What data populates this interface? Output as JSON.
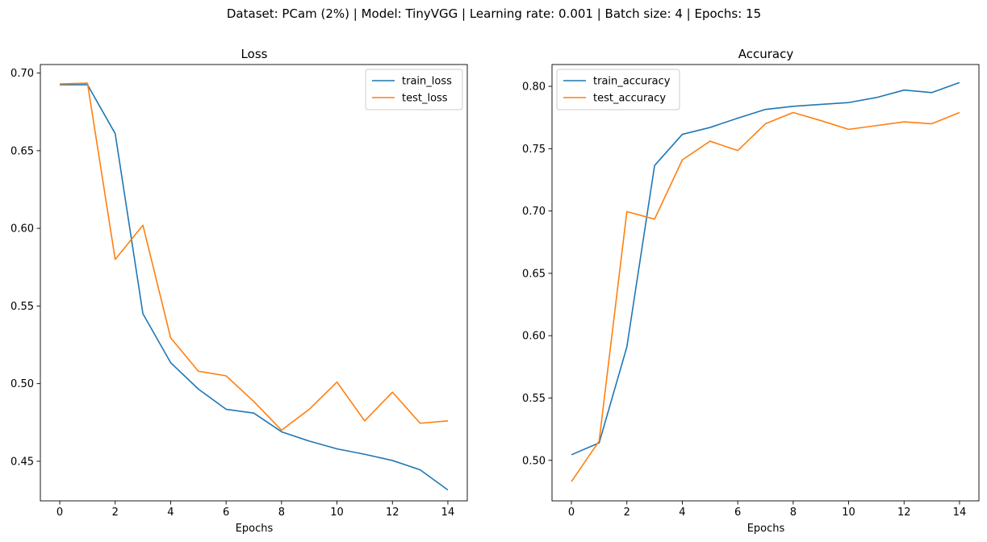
{
  "suptitle": "Dataset: PCam (2%) | Model: TinyVGG | Learning rate: 0.001 | Batch size: 4 | Epochs: 15",
  "colors": {
    "series_1": "#1f77b4",
    "series_2": "#ff7f0e"
  },
  "chart_data": [
    {
      "type": "line",
      "title": "Loss",
      "xlabel": "Epochs",
      "ylabel": "",
      "x": [
        0,
        1,
        2,
        3,
        4,
        5,
        6,
        7,
        8,
        9,
        10,
        11,
        12,
        13,
        14
      ],
      "xticks": [
        0,
        2,
        4,
        6,
        8,
        10,
        12,
        14
      ],
      "yticks": [
        0.45,
        0.5,
        0.55,
        0.6,
        0.65,
        0.7
      ],
      "ytick_format": 2,
      "xlim": [
        -0.7,
        14.7
      ],
      "ylim": [
        0.4245,
        0.7055
      ],
      "grid": false,
      "legend": "upper right",
      "series": [
        {
          "name": "train_loss",
          "color": "#1f77b4",
          "values": [
            0.6925,
            0.6925,
            0.661,
            0.545,
            0.5135,
            0.4965,
            0.4835,
            0.481,
            0.469,
            0.463,
            0.458,
            0.4545,
            0.4505,
            0.4445,
            0.4315
          ]
        },
        {
          "name": "test_loss",
          "color": "#ff7f0e",
          "values": [
            0.693,
            0.6935,
            0.58,
            0.602,
            0.5295,
            0.508,
            0.505,
            0.4885,
            0.47,
            0.4835,
            0.501,
            0.476,
            0.4945,
            0.4745,
            0.476
          ]
        }
      ]
    },
    {
      "type": "line",
      "title": "Accuracy",
      "xlabel": "Epochs",
      "ylabel": "",
      "x": [
        0,
        1,
        2,
        3,
        4,
        5,
        6,
        7,
        8,
        9,
        10,
        11,
        12,
        13,
        14
      ],
      "xticks": [
        0,
        2,
        4,
        6,
        8,
        10,
        12,
        14
      ],
      "yticks": [
        0.5,
        0.55,
        0.6,
        0.65,
        0.7,
        0.75,
        0.8
      ],
      "ytick_format": 2,
      "xlim": [
        -0.7,
        14.7
      ],
      "ylim": [
        0.4675,
        0.8175
      ],
      "grid": false,
      "legend": "upper left",
      "series": [
        {
          "name": "train_accuracy",
          "color": "#1f77b4",
          "values": [
            0.5045,
            0.514,
            0.591,
            0.7365,
            0.7615,
            0.767,
            0.7745,
            0.7815,
            0.784,
            0.7855,
            0.787,
            0.791,
            0.797,
            0.795,
            0.803
          ]
        },
        {
          "name": "test_accuracy",
          "color": "#ff7f0e",
          "values": [
            0.483,
            0.5155,
            0.6995,
            0.6935,
            0.741,
            0.756,
            0.7485,
            0.77,
            0.779,
            0.7725,
            0.7655,
            0.7685,
            0.7715,
            0.77,
            0.779
          ]
        }
      ]
    }
  ]
}
